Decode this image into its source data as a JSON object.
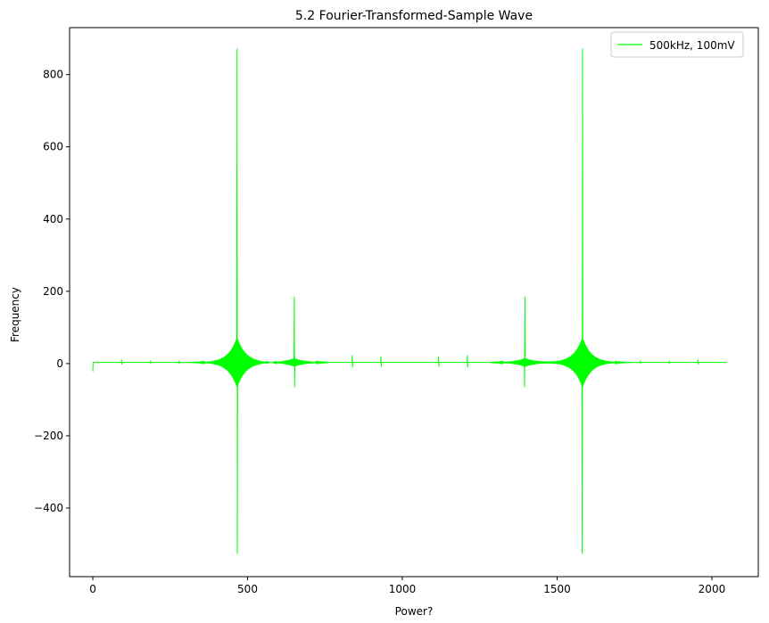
{
  "chart_data": {
    "type": "line",
    "title": "5.2 Fourier-Transformed-Sample Wave",
    "xlabel": "Power?",
    "ylabel": "Frequency",
    "xlim": [
      -75,
      2150
    ],
    "ylim": [
      -590,
      930
    ],
    "x_ticks": [
      0,
      500,
      1000,
      1500,
      2000
    ],
    "x_tick_labels": [
      "0",
      "500",
      "1000",
      "1500",
      "2000"
    ],
    "y_ticks": [
      -400,
      -200,
      0,
      200,
      400,
      600,
      800
    ],
    "y_tick_labels": [
      "−400",
      "−200",
      "0",
      "200",
      "400",
      "600",
      "800"
    ],
    "grid": false,
    "legend": {
      "position": "top-right"
    },
    "series": [
      {
        "name": "500kHz, 100mV",
        "color": "#00ff00",
        "n_points": 2048,
        "features": {
          "start_value": -22,
          "baseline": 3,
          "peaks": [
            {
              "x": 466,
              "max": 872,
              "min": -527
            },
            {
              "x": 651,
              "max": 185,
              "min": -65
            },
            {
              "x": 1396,
              "max": 185,
              "min": -65
            },
            {
              "x": 1582,
              "max": 872,
              "min": -527
            }
          ],
          "minor_spikes": [
            {
              "x": 93,
              "amp": 8
            },
            {
              "x": 186,
              "amp": 5
            },
            {
              "x": 279,
              "amp": 5
            },
            {
              "x": 838,
              "amp": 20
            },
            {
              "x": 931,
              "amp": 17
            },
            {
              "x": 1117,
              "amp": 17
            },
            {
              "x": 1210,
              "amp": 20
            },
            {
              "x": 1769,
              "amp": 5
            },
            {
              "x": 1862,
              "amp": 5
            },
            {
              "x": 1955,
              "amp": 8
            }
          ]
        }
      }
    ]
  }
}
